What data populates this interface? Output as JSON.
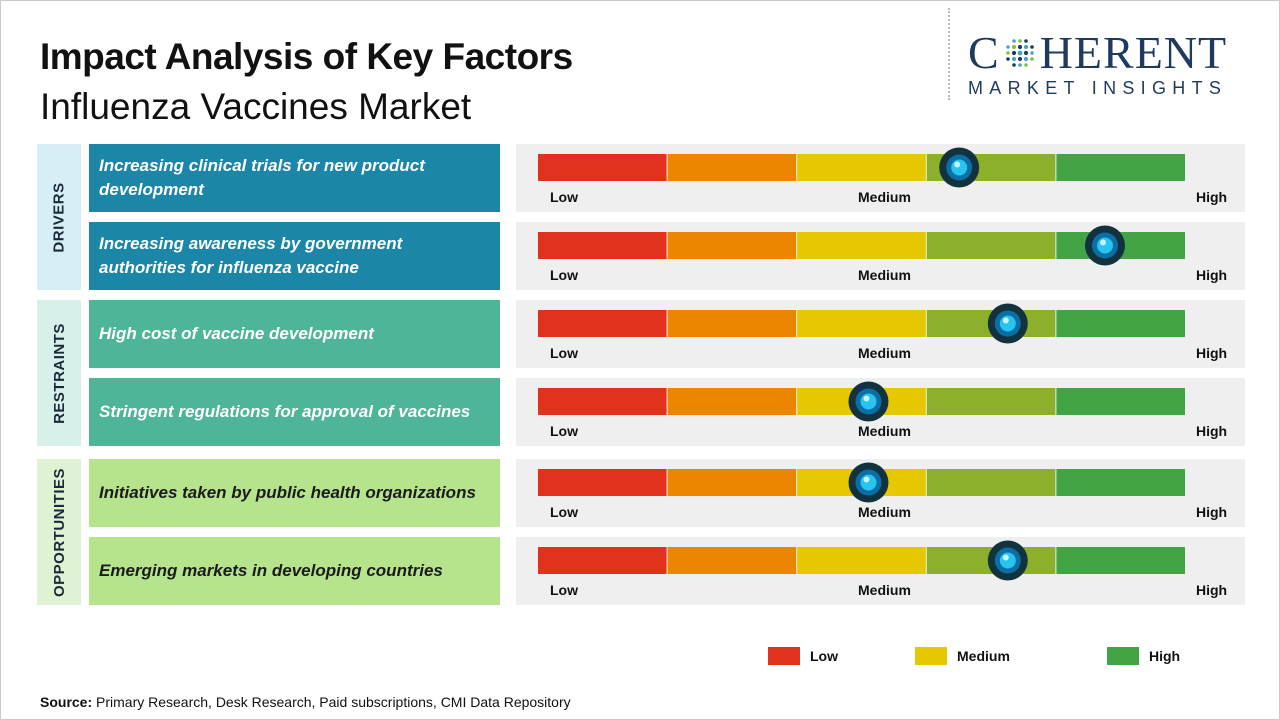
{
  "title": "Impact Analysis of Key Factors",
  "subtitle": "Influenza Vaccines Market",
  "logo": {
    "main": "COHERENT",
    "sub": "MARKET INSIGHTS"
  },
  "colors": {
    "segments": [
      "#e2311d",
      "#ec8600",
      "#e6c800",
      "#8db02c",
      "#42a444"
    ],
    "drivers_category": "#d6eef6",
    "drivers_factor": "#1b86a8",
    "restraints_category": "#d8f0ea",
    "restraints_factor": "#4fb598",
    "opportunities_category": "#dff3d4",
    "opportunities_factor": "#b5e48c"
  },
  "scale_labels": {
    "low": "Low",
    "medium": "Medium",
    "high": "High"
  },
  "chart_data": {
    "type": "bar",
    "scale": "Low-Medium-High",
    "levels": [
      "Low",
      "Medium",
      "High"
    ],
    "categories": [
      {
        "name": "DRIVERS",
        "factors": [
          {
            "label": "Increasing clinical trials for new product development",
            "impact": 0.65
          },
          {
            "label": "Increasing awareness by government authorities for influenza vaccine",
            "impact": 0.875
          }
        ]
      },
      {
        "name": "RESTRAINTS",
        "factors": [
          {
            "label": "High cost of vaccine development",
            "impact": 0.725
          },
          {
            "label": "Stringent regulations for approval of vaccines",
            "impact": 0.51
          }
        ]
      },
      {
        "name": "OPPORTUNITIES",
        "factors": [
          {
            "label": "Initiatives taken by public health organizations",
            "impact": 0.51
          },
          {
            "label": "Emerging markets in developing countries",
            "impact": 0.725
          }
        ]
      }
    ],
    "legend": [
      {
        "label": "Low",
        "color": "#e2311d"
      },
      {
        "label": "Medium",
        "color": "#e6c800"
      },
      {
        "label": "High",
        "color": "#42a444"
      }
    ]
  },
  "source": {
    "label": "Source:",
    "text": "Primary Research, Desk Research, Paid subscriptions, CMI Data Repository"
  }
}
